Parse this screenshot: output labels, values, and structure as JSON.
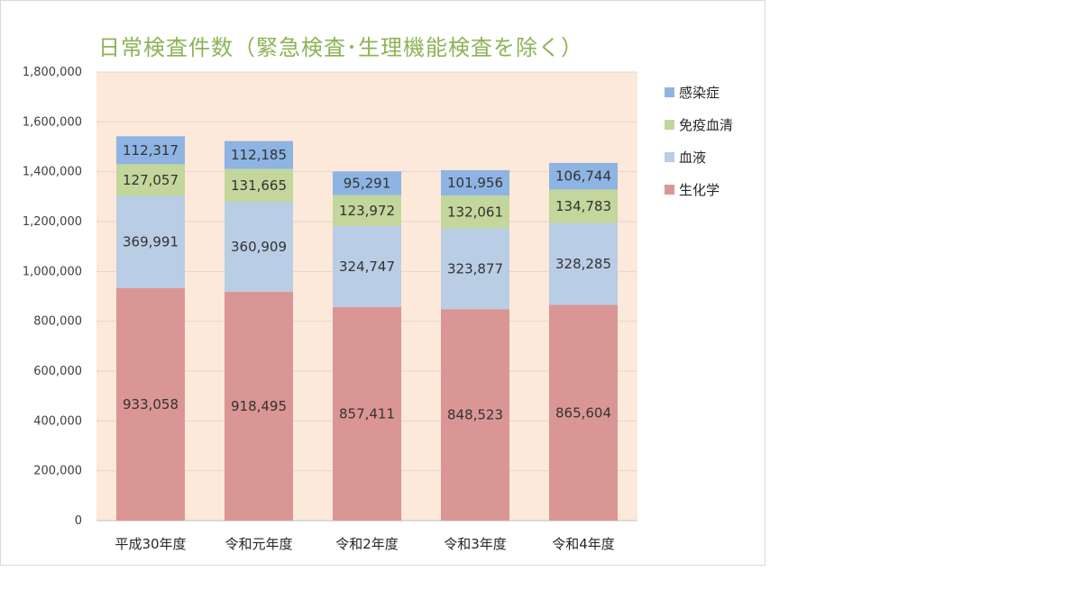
{
  "chart_data": {
    "type": "bar",
    "stacked": true,
    "title": "日常検査件数（緊急検査･生理機能検査を除く）",
    "categories": [
      "平成30年度",
      "令和元年度",
      "令和2年度",
      "令和3年度",
      "令和4年度"
    ],
    "series": [
      {
        "name": "生化学",
        "color": "#da9694",
        "values": [
          933058,
          918495,
          857411,
          848523,
          865604
        ]
      },
      {
        "name": "血液",
        "color": "#b9cde5",
        "values": [
          369991,
          360909,
          324747,
          323877,
          328285
        ]
      },
      {
        "name": "免疫血清",
        "color": "#c3d69b",
        "values": [
          127057,
          131665,
          123972,
          132061,
          134783
        ]
      },
      {
        "name": "感染症",
        "color": "#8eb4e3",
        "values": [
          112317,
          112185,
          95291,
          101956,
          106744
        ]
      }
    ],
    "legend_order": [
      "感染症",
      "免疫血清",
      "血液",
      "生化学"
    ],
    "ylim": [
      0,
      1800000
    ],
    "ytick_step": 200000,
    "grid": true,
    "plot_background": "#fde9d9",
    "legend_position": "right"
  }
}
